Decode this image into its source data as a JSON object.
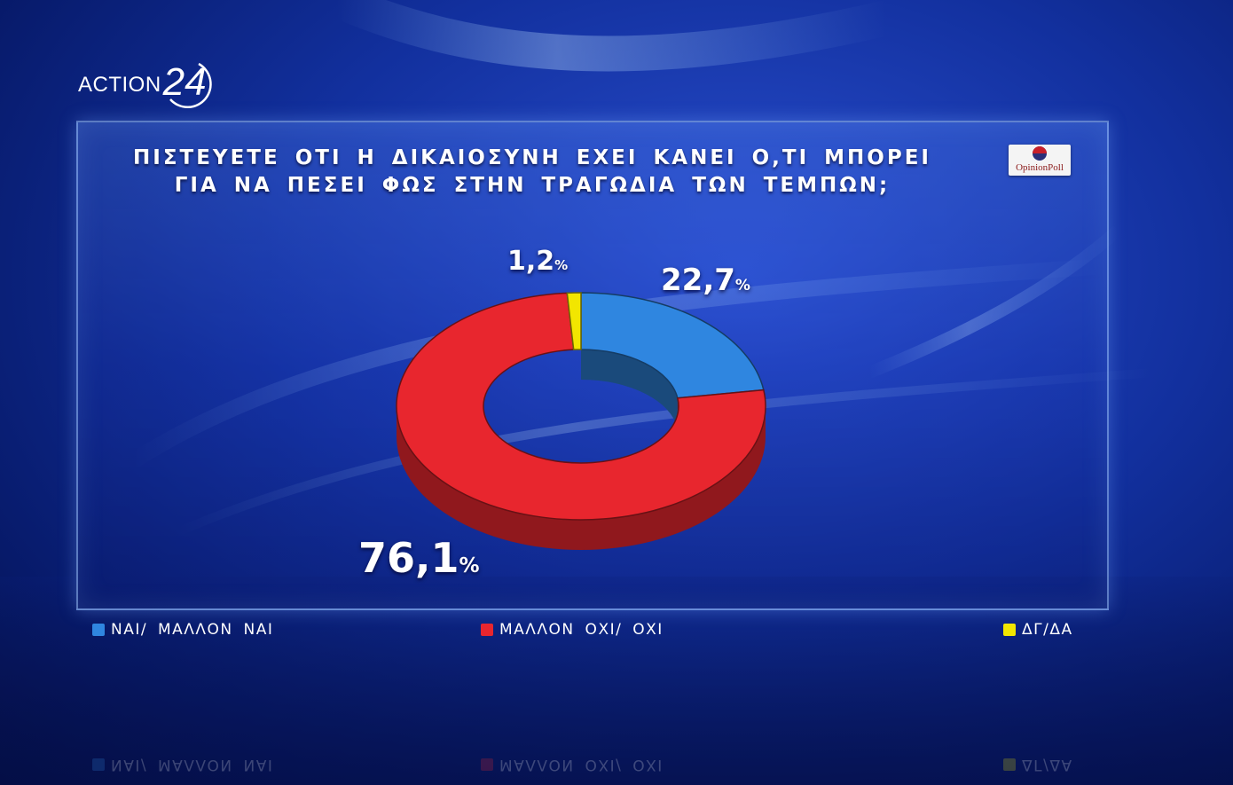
{
  "logo": {
    "text": "ACTION",
    "number": "24"
  },
  "badge": {
    "text": "OpinionPoll"
  },
  "chart_data": {
    "type": "pie",
    "style": "donut-3d",
    "title": "ΠΙΣΤΕΥΕΤΕ ΟΤΙ Η ΔΙΚΑΙΟΣΥΝΗ ΕΧΕΙ ΚΑΝΕΙ Ο,ΤΙ ΜΠΟΡΕΙ ΓΙΑ ΝΑ ΠΕΣΕΙ ΦΩΣ ΣΤΗΝ ΤΡΑΓΩΔΙΑ ΤΩΝ ΤΕΜΠΩΝ;",
    "title_lines": [
      "ΠΙΣΤΕΥΕΤΕ ΟΤΙ Η ΔΙΚΑΙΟΣΥΝΗ ΕΧΕΙ ΚΑΝΕΙ Ο,ΤΙ ΜΠΟΡΕΙ",
      "ΓΙΑ ΝΑ ΠΕΣΕΙ ΦΩΣ ΣΤΗΝ ΤΡΑΓΩΔΙΑ ΤΩΝ ΤΕΜΠΩΝ;"
    ],
    "categories": [
      "ΝΑΙ/ ΜΑΛΛΟΝ ΝΑΙ",
      "ΜΑΛΛΟΝ ΟΧΙ/ ΟΧΙ",
      "ΔΓ/ΔΑ"
    ],
    "values": [
      22.7,
      76.1,
      1.2
    ],
    "labels": [
      {
        "number": "22,7",
        "unit": "%"
      },
      {
        "number": "76,1",
        "unit": "%"
      },
      {
        "number": "1,2",
        "unit": "%"
      }
    ],
    "colors": [
      "#2f86e0",
      "#e8262e",
      "#f2e600"
    ],
    "legend_position": "bottom"
  }
}
